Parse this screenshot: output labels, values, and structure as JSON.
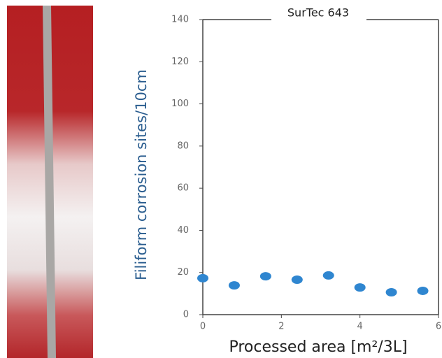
{
  "chart_data": {
    "type": "scatter",
    "title": "SurTec 643",
    "x_label": "Processed area [m²/3L]",
    "y_label": "Filiform corrosion sites/10cm",
    "x": [
      0,
      0.8,
      1.6,
      2.4,
      3.2,
      4.0,
      4.8,
      5.6
    ],
    "values": [
      17.3,
      13.9,
      18.2,
      16.6,
      18.6,
      12.9,
      10.6,
      11.3
    ],
    "color": "#2f86d0",
    "xlim": [
      0,
      6
    ],
    "xticks": [
      0,
      2,
      4,
      6
    ],
    "ylim": [
      0,
      140
    ],
    "yticks": [
      0,
      20,
      40,
      60,
      80,
      100,
      120,
      140
    ],
    "grid": false
  }
}
